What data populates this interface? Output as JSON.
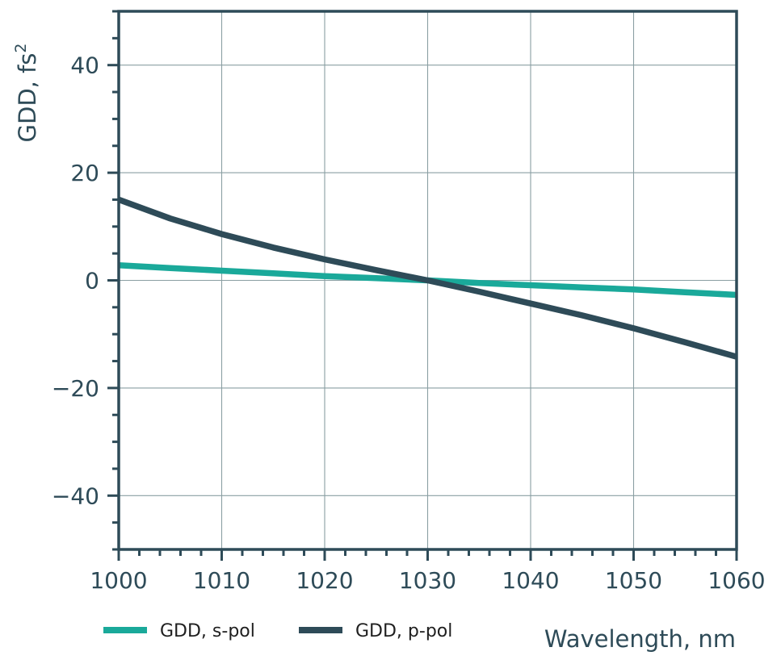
{
  "chart_data": {
    "type": "line",
    "xlabel": "Wavelength, nm",
    "ylabel": "GDD, fs",
    "ylabel_superscript": "2",
    "xlim": [
      1000,
      1060
    ],
    "ylim": [
      -50,
      50
    ],
    "x_ticks": [
      1000,
      1010,
      1020,
      1030,
      1040,
      1050,
      1060
    ],
    "y_ticks": [
      -40,
      -20,
      0,
      20,
      40
    ],
    "x_tick_labels": [
      "1000",
      "1010",
      "1020",
      "1030",
      "1040",
      "1050",
      "1060"
    ],
    "y_tick_labels": [
      "−40",
      "−20",
      "0",
      "20",
      "40"
    ],
    "grid": true,
    "legend_position": "bottom-left",
    "series": [
      {
        "name": "GDD, s-pol",
        "color": "#1aa99a",
        "x": [
          1000,
          1005,
          1010,
          1015,
          1020,
          1025,
          1030,
          1035,
          1040,
          1045,
          1050,
          1055,
          1060
        ],
        "y": [
          2.8,
          2.3,
          1.8,
          1.3,
          0.8,
          0.4,
          0.0,
          -0.5,
          -0.9,
          -1.3,
          -1.7,
          -2.2,
          -2.7
        ]
      },
      {
        "name": "GDD, p-pol",
        "color": "#2e4b58",
        "x": [
          1000,
          1005,
          1010,
          1015,
          1020,
          1025,
          1030,
          1035,
          1040,
          1045,
          1050,
          1055,
          1060
        ],
        "y": [
          15.0,
          11.5,
          8.6,
          6.1,
          3.9,
          1.9,
          0.0,
          -2.1,
          -4.3,
          -6.5,
          -8.9,
          -11.5,
          -14.2
        ]
      }
    ]
  }
}
